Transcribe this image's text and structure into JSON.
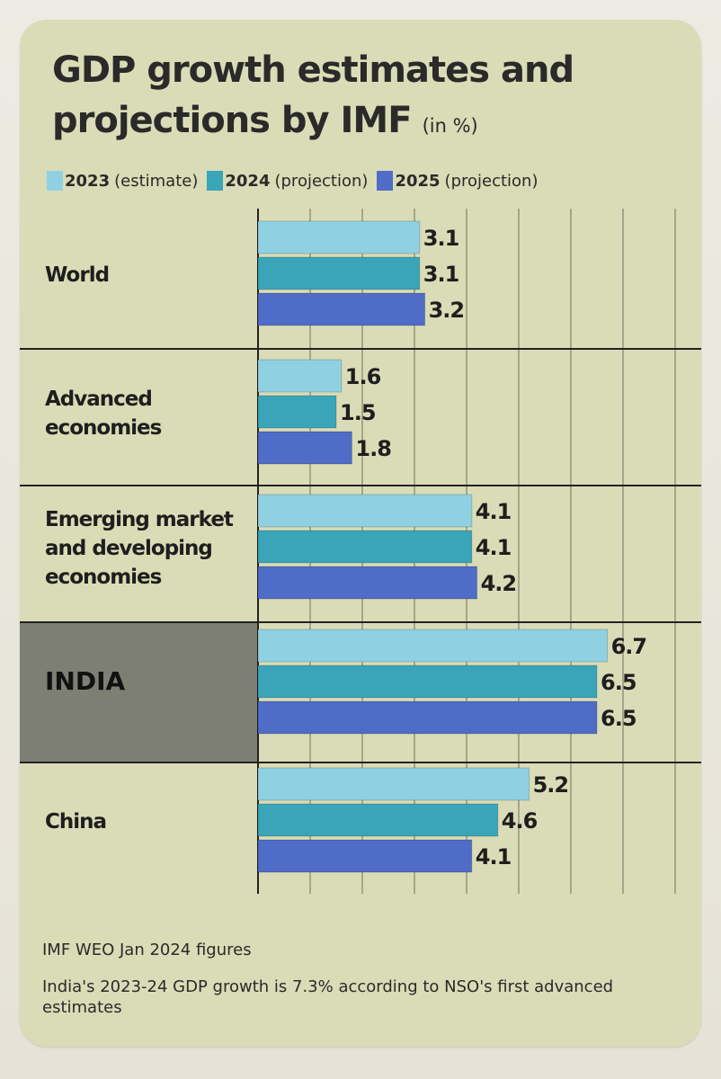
{
  "title": {
    "line1": "GDP growth estimates and",
    "line2": "projections by IMF",
    "unit": "(in %)"
  },
  "legend": [
    {
      "year": "2023",
      "label": "(estimate)"
    },
    {
      "year": "2024",
      "label": "(projection)"
    },
    {
      "year": "2025",
      "label": "(projection)"
    }
  ],
  "colors": {
    "series_2023": "#8fd1e3",
    "series_2024": "#3aa5b9",
    "series_2025": "#4f6cc7",
    "card": "#d9dcb6",
    "highlight": "#7d7e74"
  },
  "chart_data": {
    "type": "bar",
    "orientation": "horizontal",
    "categories": [
      [
        "World"
      ],
      [
        "Advanced",
        "economies"
      ],
      [
        "Emerging market",
        "and developing",
        "economies"
      ],
      [
        "INDIA"
      ],
      [
        "China"
      ]
    ],
    "highlight_category": "INDIA",
    "series": [
      {
        "name": "2023 (estimate)",
        "values": [
          3.1,
          1.6,
          4.1,
          6.7,
          5.2
        ],
        "labels": [
          "3.1",
          "1.6",
          "4.1",
          "6.7",
          "5.2"
        ]
      },
      {
        "name": "2024 (projection)",
        "values": [
          3.1,
          1.5,
          4.1,
          6.5,
          4.6
        ],
        "labels": [
          "3.1",
          "1.5",
          "4.1",
          "6.5",
          "4.6"
        ]
      },
      {
        "name": "2025 (projection)",
        "values": [
          3.2,
          1.8,
          4.2,
          6.5,
          4.1
        ],
        "labels": [
          "3.2",
          "1.8",
          "4.2",
          "6.5",
          "4.1"
        ]
      }
    ],
    "xlim": [
      0,
      8
    ],
    "grid": true,
    "legend_position": "top"
  },
  "notes": [
    "IMF WEO Jan 2024 figures",
    "India's 2023-24 GDP growth is 7.3% according to NSO's first advanced estimates"
  ]
}
